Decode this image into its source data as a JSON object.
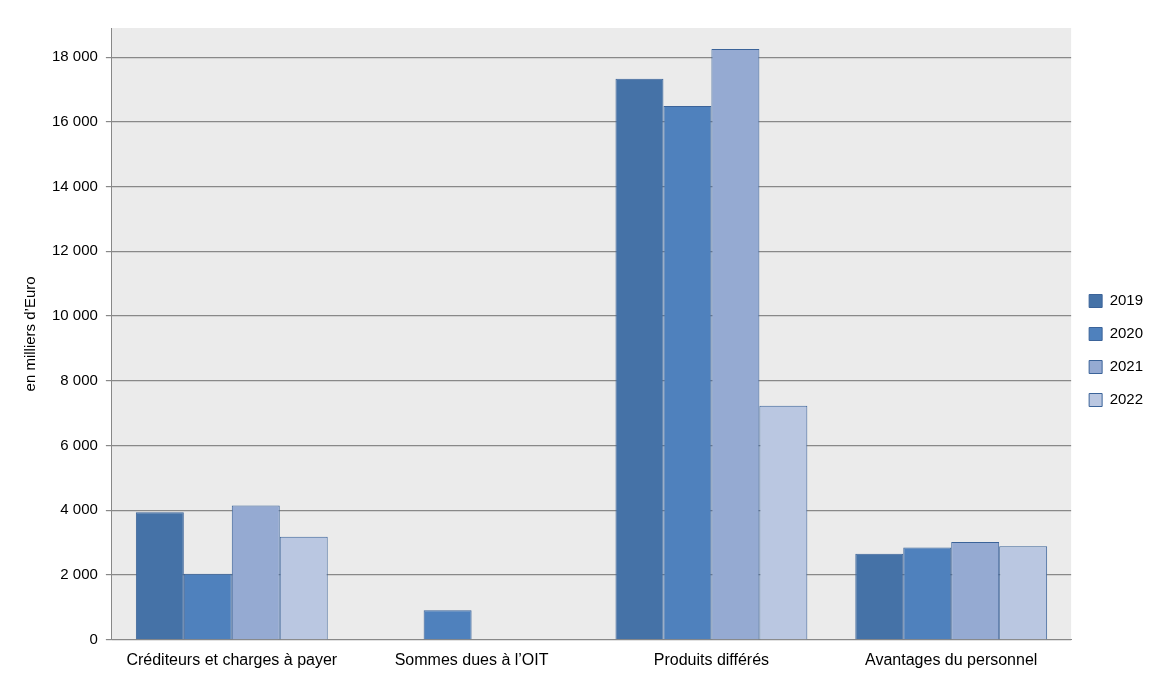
{
  "chart_data": {
    "type": "bar",
    "ylabel": "en milliers d’Euro",
    "categories": [
      "Créditeurs et charges à payer",
      "Sommes dues à l’OIT",
      "Produits différés",
      "Avantages du personnel"
    ],
    "series": [
      {
        "name": "2019",
        "color": "#4572a7",
        "values": [
          3940,
          null,
          17330,
          2660
        ]
      },
      {
        "name": "2020",
        "color": "#4f81bd",
        "values": [
          2040,
          910,
          16490,
          2850
        ]
      },
      {
        "name": "2021",
        "color": "#95aad2",
        "values": [
          4150,
          null,
          18250,
          3020
        ]
      },
      {
        "name": "2022",
        "color": "#bac7e1",
        "values": [
          3180,
          null,
          7230,
          2890
        ]
      }
    ],
    "ylim": [
      0,
      18900
    ],
    "yticks": [
      0,
      {
        "value": 2000,
        "label": "2 000"
      },
      {
        "value": 4000,
        "label": "4 000"
      },
      {
        "value": 6000,
        "label": "6 000"
      },
      {
        "value": 8000,
        "label": "8 000"
      },
      {
        "value": 10000,
        "label": "10 000"
      },
      {
        "value": 12000,
        "label": "12 000"
      },
      {
        "value": 14000,
        "label": "14 000"
      },
      {
        "value": 16000,
        "label": "16 000"
      },
      {
        "value": 18000,
        "label": "18 000"
      }
    ],
    "grid": "y",
    "legend": "right"
  }
}
